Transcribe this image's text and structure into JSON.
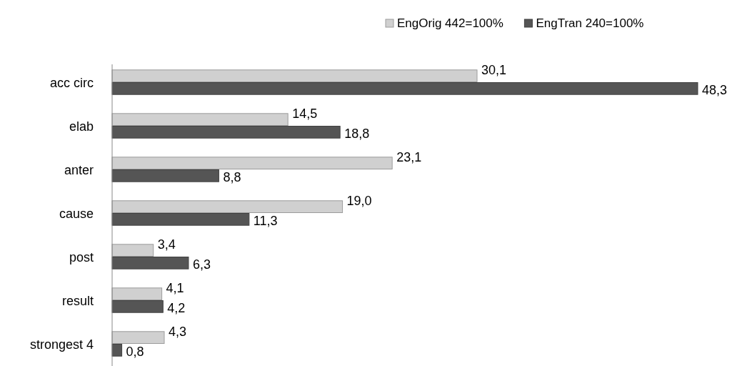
{
  "chart_data": {
    "type": "bar",
    "orientation": "horizontal",
    "legend": "top",
    "categories": [
      "acc circ",
      "elab",
      "anter",
      "cause",
      "post",
      "result",
      "strongest 4"
    ],
    "series": [
      {
        "name": "EngOrig 442=100%",
        "color": "#d0d0d0",
        "values": [
          30.1,
          14.5,
          23.1,
          19.0,
          3.4,
          4.1,
          4.3
        ],
        "value_labels": [
          "30,1",
          "14,5",
          "23,1",
          "19,0",
          "3,4",
          "4,1",
          "4,3"
        ]
      },
      {
        "name": "EngTran 240=100%",
        "color": "#555555",
        "values": [
          48.3,
          18.8,
          8.8,
          11.3,
          6.3,
          4.2,
          0.8
        ],
        "value_labels": [
          "48,3",
          "18,8",
          "8,8",
          "11,3",
          "6,3",
          "4,2",
          "0,8"
        ]
      }
    ]
  }
}
